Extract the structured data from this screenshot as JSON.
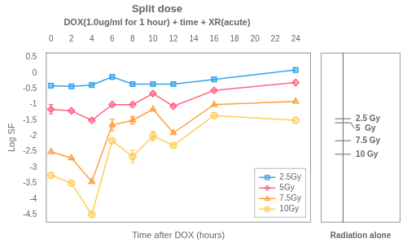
{
  "chart_data": {
    "type": "line",
    "title": "Split dose",
    "subtitle": "DOX(1.0ug/ml for 1 hour) + time + XR(acute)",
    "x_label": "Time after DOX (hours)",
    "y_label": "Log SF",
    "xlim": [
      -0.5,
      25.5
    ],
    "ylim": [
      -4.75,
      0.65
    ],
    "xticks": [
      0,
      2,
      4,
      6,
      8,
      10,
      12,
      14,
      16,
      18,
      20,
      22,
      24
    ],
    "yticks": [
      0.5,
      0,
      -0.5,
      -1,
      -1.5,
      -2,
      -2.5,
      -3,
      -3.5,
      -4,
      -4.5
    ],
    "grid": false,
    "legend": "lower right",
    "series": [
      {
        "name": "2.5Gy",
        "marker": "square",
        "x": [
          0,
          2,
          4,
          6,
          8,
          10,
          12,
          16,
          24
        ],
        "values": [
          -0.4,
          -0.42,
          -0.38,
          -0.12,
          -0.35,
          -0.35,
          -0.35,
          -0.2,
          0.1
        ]
      },
      {
        "name": "5Gy",
        "marker": "diamond",
        "x": [
          0,
          2,
          4,
          6,
          8,
          10,
          12,
          16,
          24
        ],
        "values": [
          -1.15,
          -1.2,
          -1.5,
          -1.0,
          -1.0,
          -0.65,
          -1.05,
          -0.55,
          -0.3
        ],
        "error_bars": {
          "x": [
            0
          ],
          "yerr": [
            0.15
          ]
        }
      },
      {
        "name": "7.5Gy",
        "marker": "triangle",
        "x": [
          0,
          2,
          4,
          6,
          8,
          10,
          12,
          16,
          24
        ],
        "values": [
          -2.5,
          -2.7,
          -3.45,
          -1.65,
          -1.5,
          -1.15,
          -1.9,
          -1.0,
          -0.9
        ],
        "error_bars": {
          "x": [
            6,
            8
          ],
          "yerr": [
            0.18,
            0.12
          ]
        }
      },
      {
        "name": "10Gy",
        "marker": "circle",
        "x": [
          0,
          2,
          4,
          6,
          8,
          10,
          12,
          16,
          24
        ],
        "values": [
          -3.25,
          -3.5,
          -4.5,
          -2.15,
          -2.65,
          -2.0,
          -2.3,
          -1.35,
          -1.5
        ],
        "error_bars": {
          "x": [
            8,
            10
          ],
          "yerr": [
            0.2,
            0.15
          ]
        }
      }
    ],
    "radiation_alone": {
      "title": "Radiation alone",
      "labels": [
        "2.5 Gy",
        "5  Gy",
        "7.5 Gy",
        "10 Gy"
      ],
      "values": [
        -1.45,
        -1.58,
        -2.15,
        -2.58
      ]
    }
  }
}
